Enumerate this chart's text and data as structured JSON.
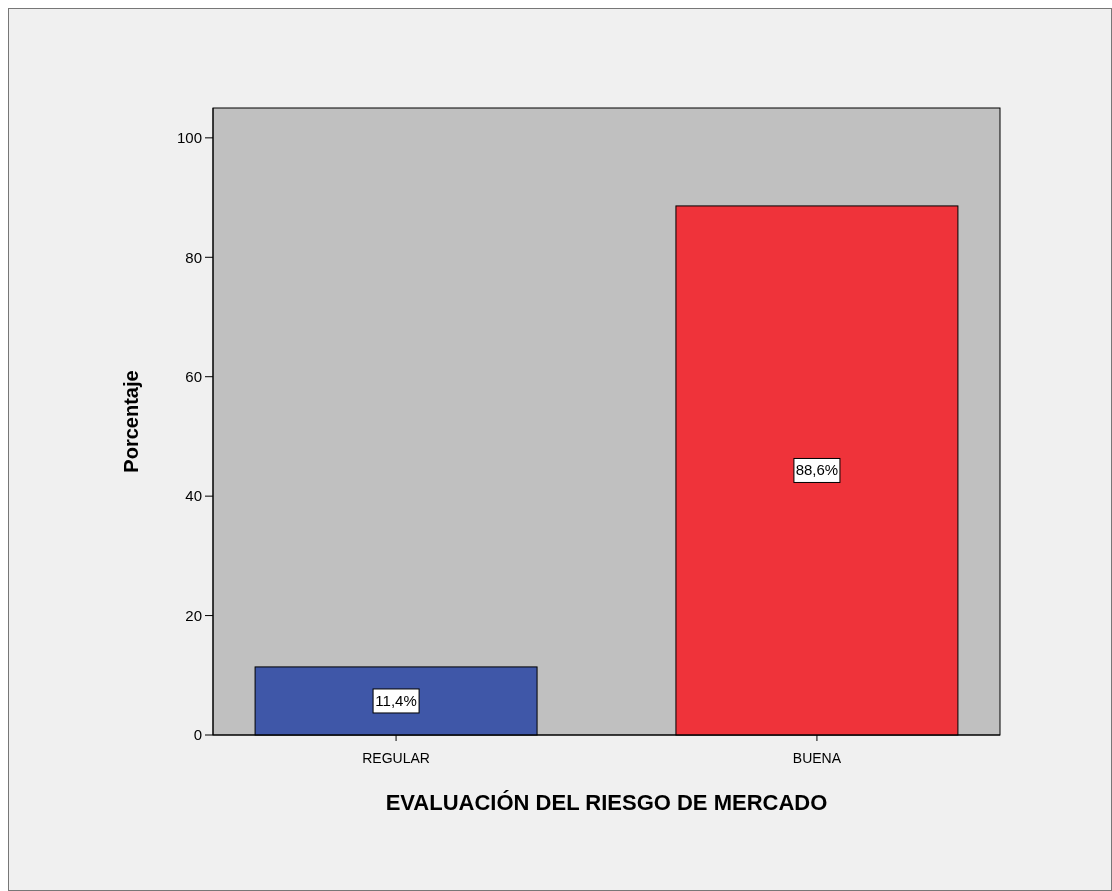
{
  "chart_data": {
    "type": "bar",
    "xlabel": "EVALUACIÓN DEL RIESGO DE MERCADO",
    "ylabel": "Porcentaje",
    "categories": [
      "REGULAR",
      "BUENA"
    ],
    "values": [
      11.4,
      88.6
    ],
    "colors": [
      "#3f57a8",
      "#ef333a"
    ],
    "value_labels": [
      "11,4%",
      "88,6%"
    ],
    "ylim": [
      0,
      105
    ],
    "yticks": [
      0,
      20,
      40,
      60,
      80,
      100
    ],
    "grid": false
  }
}
